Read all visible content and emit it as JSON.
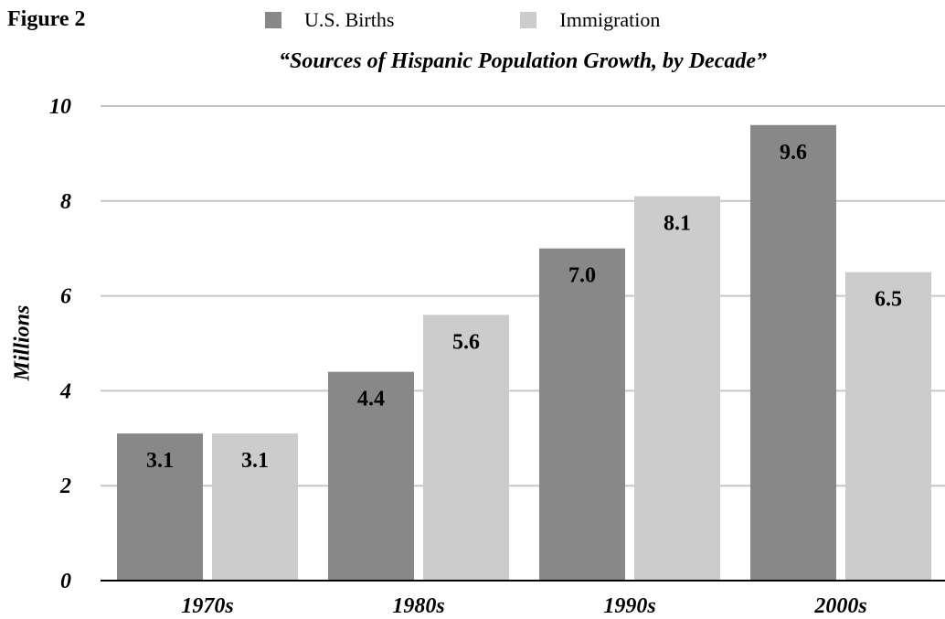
{
  "figure_label": "Figure 2",
  "chart_data": {
    "type": "bar",
    "title": "“Sources of Hispanic Population Growth, by Decade”",
    "xlabel": "",
    "ylabel": "Millions",
    "ylim": [
      0,
      10
    ],
    "yticks": [
      0,
      2,
      4,
      6,
      8,
      10
    ],
    "grid": true,
    "legend_position": "top",
    "categories": [
      "1970s",
      "1980s",
      "1990s",
      "2000s"
    ],
    "series": [
      {
        "name": "U.S. Births",
        "color": "#888888",
        "values": [
          3.1,
          4.4,
          7.0,
          9.6
        ],
        "labels": [
          "3.1",
          "4.4",
          "7.0",
          "9.6"
        ]
      },
      {
        "name": "Immigration",
        "color": "#cccccc",
        "values": [
          3.1,
          5.6,
          8.1,
          6.5
        ],
        "labels": [
          "3.1",
          "5.6",
          "8.1",
          "6.5"
        ]
      }
    ]
  }
}
